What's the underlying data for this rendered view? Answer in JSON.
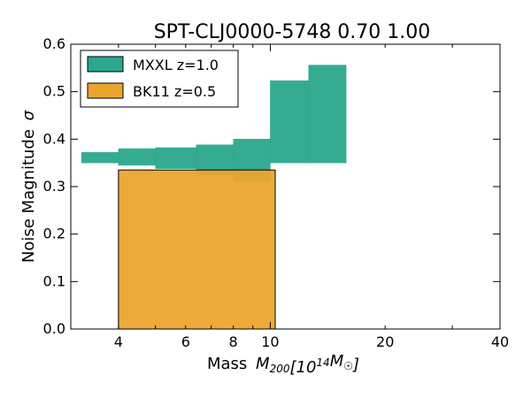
{
  "chart_data": {
    "type": "area",
    "title": "SPT-CLJ0000-5748 0.70 1.00",
    "xlabel": "Mass",
    "xlabel_math": "M200[10^14 M☉]",
    "ylabel": "Noise Magnitude",
    "ylabel_symbol": "σ",
    "x_scale": "log",
    "xlim": [
      3.0,
      40.0
    ],
    "ylim": [
      0.0,
      0.6
    ],
    "x_ticks": [
      4,
      6,
      8,
      10,
      20,
      40
    ],
    "x_tick_labels": [
      "4",
      "6",
      "8",
      "10",
      "20",
      "40"
    ],
    "y_ticks": [
      0.0,
      0.1,
      0.2,
      0.3,
      0.4,
      0.5,
      0.6
    ],
    "y_tick_labels": [
      "0.0",
      "0.1",
      "0.2",
      "0.3",
      "0.4",
      "0.5",
      "0.6"
    ],
    "legend_position": "top-left",
    "series": [
      {
        "name": "MXXL z=1.0",
        "color": "#2aa78c",
        "bins": [
          {
            "x0": 3.2,
            "x1": 4.0,
            "low": 0.35,
            "high": 0.372
          },
          {
            "x0": 4.0,
            "x1": 5.0,
            "low": 0.345,
            "high": 0.38
          },
          {
            "x0": 5.0,
            "x1": 6.4,
            "low": 0.338,
            "high": 0.382
          },
          {
            "x0": 6.4,
            "x1": 8.0,
            "low": 0.325,
            "high": 0.388
          },
          {
            "x0": 8.0,
            "x1": 10.0,
            "low": 0.312,
            "high": 0.4
          },
          {
            "x0": 10.0,
            "x1": 12.6,
            "low": 0.35,
            "high": 0.523
          },
          {
            "x0": 12.6,
            "x1": 15.8,
            "low": 0.35,
            "high": 0.556
          }
        ]
      },
      {
        "name": "BK11 z=0.5",
        "color": "#eaa52e",
        "bins": [
          {
            "x0": 4.0,
            "x1": 10.3,
            "low": 0.0,
            "high": 0.335
          }
        ]
      }
    ]
  }
}
